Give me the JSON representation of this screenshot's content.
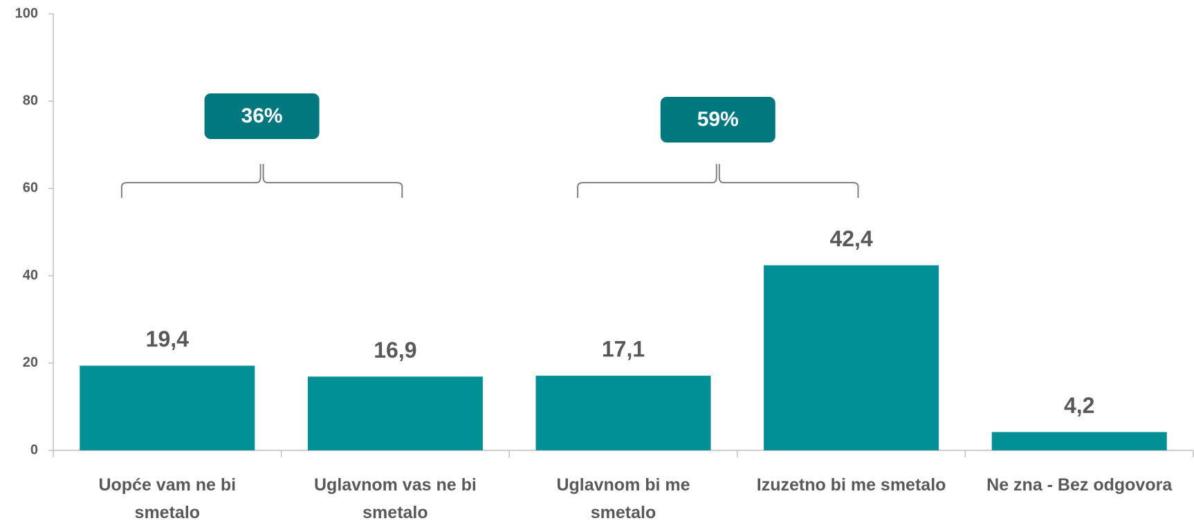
{
  "chart_data": {
    "type": "bar",
    "categories": [
      [
        "Uopće vam ne bi",
        "smetalo"
      ],
      [
        "Uglavnom vas ne bi",
        "smetalo"
      ],
      [
        "Uglavnom bi me",
        "smetalo"
      ],
      [
        "Izuzetno bi me smetalo"
      ],
      [
        "Ne zna - Bez odgovora"
      ]
    ],
    "values": [
      19.4,
      16.9,
      17.1,
      42.4,
      4.2
    ],
    "value_labels": [
      "19,4",
      "16,9",
      "17,1",
      "42,4",
      "4,2"
    ],
    "color": "#009096",
    "ylim": [
      0,
      100
    ],
    "yticks": [
      0,
      20,
      40,
      60,
      80,
      100
    ],
    "annotations": [
      "36%",
      "59%"
    ],
    "annotation_color": "#00787d"
  }
}
